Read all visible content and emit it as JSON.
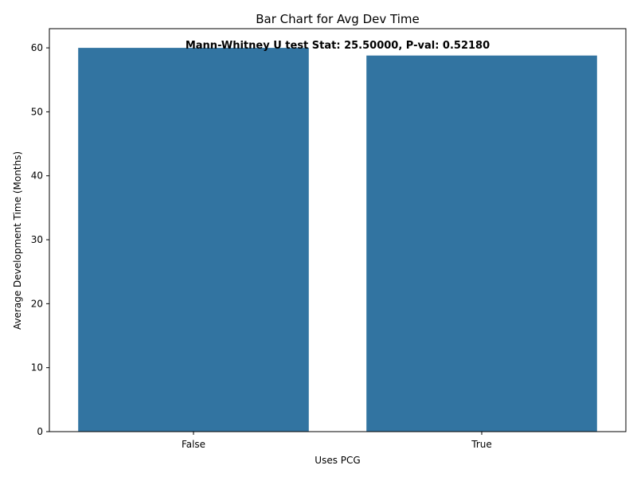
{
  "chart_data": {
    "type": "bar",
    "title": "Bar Chart for Avg Dev Time",
    "xlabel": "Uses PCG",
    "ylabel": "Average Development Time (Months)",
    "categories": [
      "False",
      "True"
    ],
    "values": [
      60.0,
      58.8
    ],
    "ylim": [
      0,
      63
    ],
    "yticks": [
      "0",
      "10",
      "20",
      "30",
      "40",
      "50",
      "60"
    ],
    "annotation": "Mann-Whitney U test Stat: 25.50000, P-val: 0.52180",
    "bar_color": "#3274a1",
    "grid": false,
    "legend": "none"
  }
}
